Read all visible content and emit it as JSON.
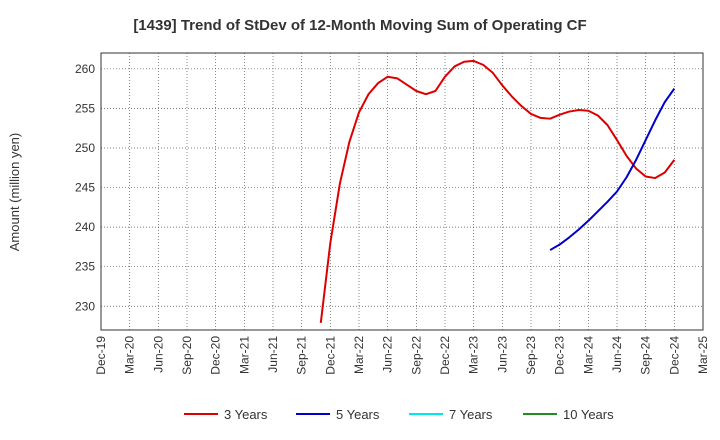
{
  "chart_data": {
    "type": "line",
    "title": "[1439]  Trend of StDev of 12-Month Moving Sum of Operating CF",
    "xlabel": "",
    "ylabel": "Amount (million yen)",
    "ylim": [
      227,
      262
    ],
    "yticks": [
      230,
      235,
      240,
      245,
      250,
      255,
      260
    ],
    "x_tick_labels": [
      "Dec-19",
      "Mar-20",
      "Jun-20",
      "Sep-20",
      "Dec-20",
      "Mar-21",
      "Jun-21",
      "Sep-21",
      "Dec-21",
      "Mar-22",
      "Jun-22",
      "Sep-22",
      "Dec-22",
      "Mar-23",
      "Jun-23",
      "Sep-23",
      "Dec-23",
      "Mar-24",
      "Jun-24",
      "Sep-24",
      "Dec-24",
      "Mar-25"
    ],
    "grid": true,
    "legend_position": "bottom",
    "series": [
      {
        "name": "3 Years",
        "color": "#dd0000",
        "start_month": "Nov-21",
        "values": [
          227.9,
          238.0,
          245.5,
          250.8,
          254.5,
          256.8,
          258.2,
          259.0,
          258.8,
          258.0,
          257.2,
          256.8,
          257.2,
          259.0,
          260.3,
          260.9,
          261.0,
          260.5,
          259.5,
          257.9,
          256.5,
          255.3,
          254.3,
          253.8,
          253.7,
          254.2,
          254.6,
          254.8,
          254.7,
          254.1,
          252.9,
          251.0,
          249.0,
          247.4,
          246.4,
          246.2,
          246.9,
          248.5
        ]
      },
      {
        "name": "5 Years",
        "color": "#0000cc",
        "start_month": "Nov-23",
        "values": [
          237.1,
          237.8,
          238.7,
          239.7,
          240.8,
          242.0,
          243.2,
          244.5,
          246.3,
          248.5,
          251.0,
          253.5,
          255.8,
          257.5
        ]
      },
      {
        "name": "7 Years",
        "color": "#00e5ee",
        "start_month": "",
        "values": []
      },
      {
        "name": "10 Years",
        "color": "#228b22",
        "start_month": "",
        "values": []
      }
    ]
  }
}
